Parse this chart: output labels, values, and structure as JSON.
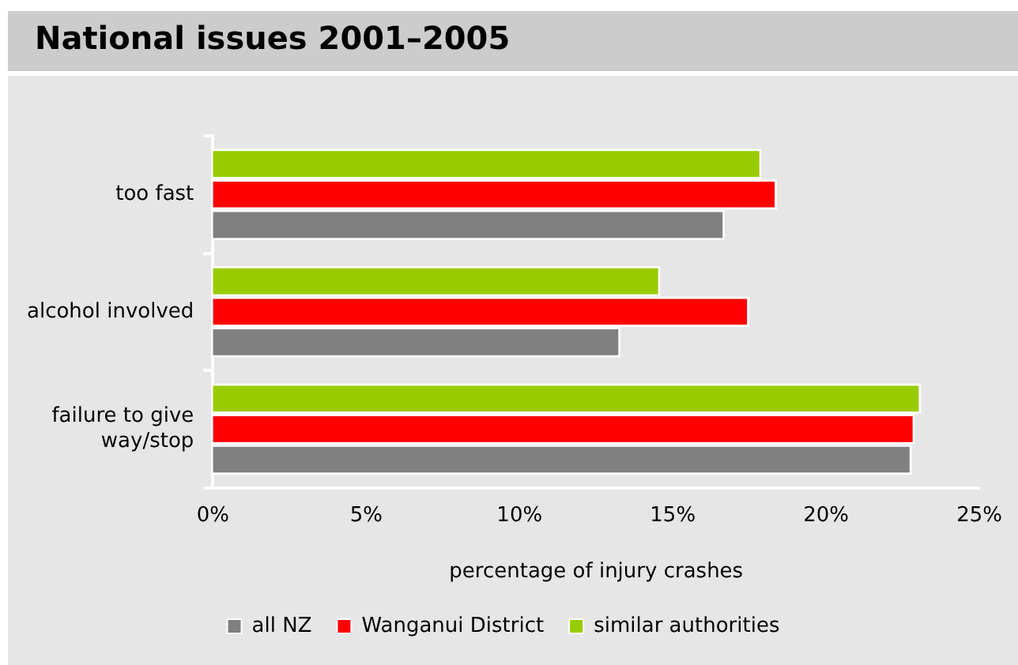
{
  "chart_data": {
    "type": "bar",
    "title": "National issues 2001–2005",
    "orientation": "horizontal",
    "categories": [
      "too fast",
      "alcohol involved",
      "failure to give way/stop"
    ],
    "series": [
      {
        "name": "all NZ",
        "color": "#808080",
        "values": [
          16.7,
          13.3,
          22.8
        ]
      },
      {
        "name": "Wanganui District",
        "color": "#ff0000",
        "values": [
          18.4,
          17.5,
          22.9
        ]
      },
      {
        "name": "similar authorities",
        "color": "#99cc00",
        "values": [
          17.9,
          14.6,
          23.1
        ]
      }
    ],
    "xlabel": "percentage of injury crashes",
    "xlim": [
      0,
      25
    ],
    "xticks": [
      {
        "value": 0,
        "label": "0%"
      },
      {
        "value": 5,
        "label": "5%"
      },
      {
        "value": 10,
        "label": "10%"
      },
      {
        "value": 15,
        "label": "15%"
      },
      {
        "value": 20,
        "label": "20%"
      },
      {
        "value": 25,
        "label": "25%"
      }
    ],
    "grid": false,
    "legend": "bottom"
  }
}
